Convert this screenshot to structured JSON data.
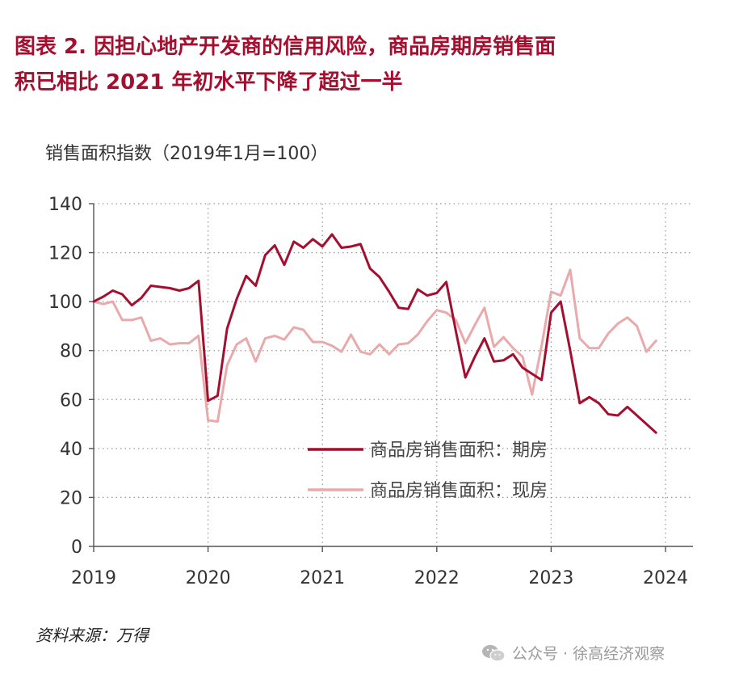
{
  "title": {
    "line1": "图表 2.  因担心地产开发商的信用风险，商品房期房销售面",
    "line2": "积已相比 2021 年初水平下降了超过一半"
  },
  "source": "资料来源：万得",
  "watermark": {
    "text": "公众号 · 徐高经济观察",
    "icon": "wechat-icon"
  },
  "colors": {
    "accent": "#a50f2f",
    "series1": "#a50f2f",
    "series2": "#e8aaaa",
    "title": "#a50f2f"
  },
  "chart_data": {
    "type": "line",
    "title": "",
    "ylabel": "销售面积指数（2019年1月=100）",
    "xlabel": "",
    "ylim": [
      0,
      140
    ],
    "yticks": [
      0,
      20,
      40,
      60,
      80,
      100,
      120,
      140
    ],
    "xlim": [
      2019,
      2024
    ],
    "xtick_labels": [
      "2019",
      "2020",
      "2021",
      "2022",
      "2023",
      "2024"
    ],
    "grid": "horizontal dotted",
    "legend_position": "bottom-right",
    "series": [
      {
        "name": "商品房销售面积：期房",
        "values": [
          100,
          102,
          104.5,
          103,
          98.5,
          101.5,
          106.5,
          106,
          105.5,
          104.5,
          105.5,
          108.5,
          59.5,
          61.5,
          89,
          101,
          110.5,
          106.5,
          119,
          123,
          115,
          124.5,
          122,
          125.5,
          122.5,
          127.5,
          122,
          122.5,
          123.5,
          113.5,
          110,
          104,
          97.5,
          97,
          105,
          102.5,
          103.5,
          108,
          88,
          69,
          77.5,
          85,
          75.5,
          76,
          78.5,
          73,
          70.5,
          68,
          95.5,
          100,
          80,
          58.5,
          61,
          58.5,
          54,
          53.5,
          57,
          53.5,
          50,
          46.5
        ]
      },
      {
        "name": "商品房销售面积：现房",
        "values": [
          100,
          99,
          100,
          92.5,
          92.5,
          93.5,
          84,
          85,
          82.5,
          83,
          83,
          86,
          51.5,
          51,
          74,
          82.5,
          85,
          75.5,
          85,
          86,
          84.5,
          89.5,
          88.5,
          83.5,
          83.5,
          82,
          79.5,
          86.5,
          79.5,
          78.5,
          82.5,
          78.5,
          82.5,
          83,
          86.5,
          92,
          96.5,
          95.5,
          92.5,
          83,
          90.5,
          97.5,
          81.5,
          85.5,
          81,
          77.5,
          62,
          82,
          104,
          102.5,
          113,
          85,
          81,
          81,
          87,
          91,
          93.5,
          90,
          79.5,
          84
        ]
      }
    ]
  }
}
